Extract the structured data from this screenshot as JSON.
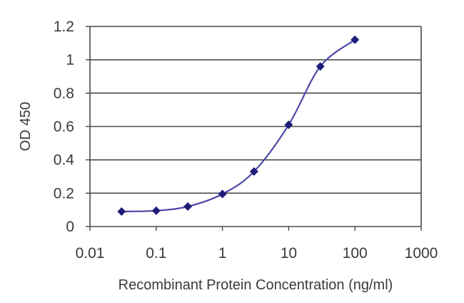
{
  "chart_data": {
    "type": "line",
    "title": "",
    "xlabel": "Recombinant Protein Concentration (ng/ml)",
    "ylabel": "OD 450",
    "x_scale": "log",
    "xlim": [
      0.01,
      1000
    ],
    "ylim": [
      0,
      1.2
    ],
    "x_ticks": [
      "0.01",
      "0.1",
      "1",
      "10",
      "100",
      "1000"
    ],
    "y_ticks": [
      "0",
      "0.2",
      "0.4",
      "0.6",
      "0.8",
      "1",
      "1.2"
    ],
    "grid": "horizontal",
    "legend": "none",
    "series": [
      {
        "x": [
          0.03,
          0.1,
          0.3,
          1,
          3,
          10,
          30,
          100
        ],
        "y": [
          0.09,
          0.095,
          0.12,
          0.195,
          0.33,
          0.61,
          0.96,
          1.12
        ]
      }
    ]
  },
  "colors": {
    "line": "#4b47a6",
    "marker": "#1f1d7a",
    "grid": "#4a4a4a",
    "frame": "#4a4a4a",
    "text": "#3a3a3a"
  }
}
